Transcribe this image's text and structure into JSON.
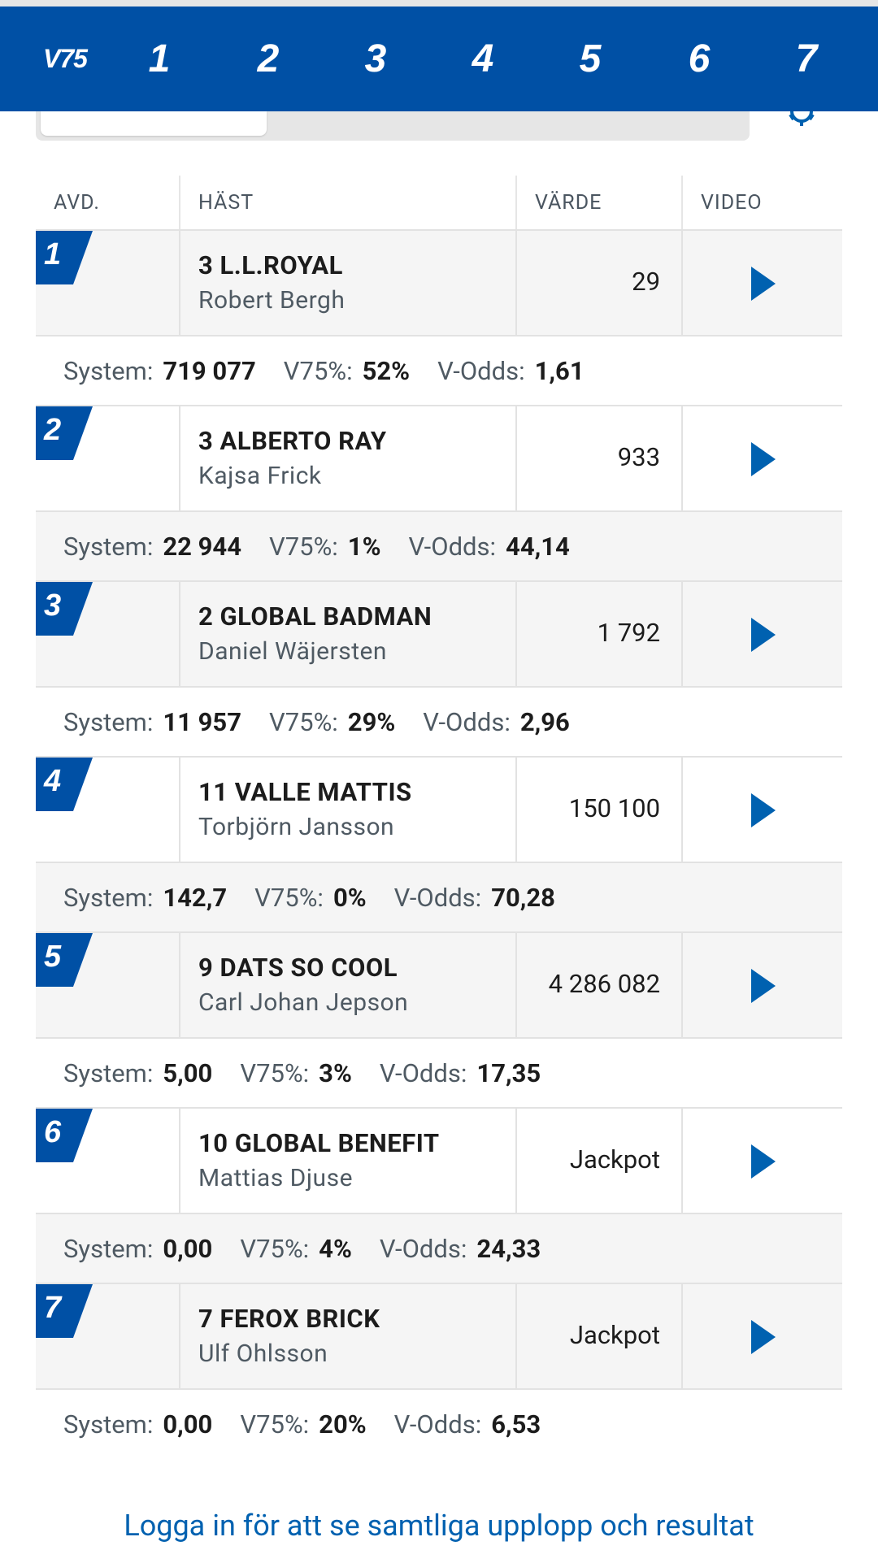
{
  "nav": {
    "brand": "V75",
    "races": [
      "1",
      "2",
      "3",
      "4",
      "5",
      "6",
      "7"
    ]
  },
  "table": {
    "headers": {
      "avd": "AVD.",
      "hast": "HÄST",
      "varde": "VÄRDE",
      "video": "VIDEO"
    }
  },
  "stat_labels": {
    "system": "System:",
    "pct": "V75%:",
    "odds": "V-Odds:"
  },
  "races": [
    {
      "avd": "1",
      "horse": "3 L.L.ROYAL",
      "driver": "Robert Bergh",
      "value": "29",
      "system": "719 077",
      "pct": "52%",
      "odds": "1,61"
    },
    {
      "avd": "2",
      "horse": "3 ALBERTO RAY",
      "driver": "Kajsa Frick",
      "value": "933",
      "system": "22 944",
      "pct": "1%",
      "odds": "44,14"
    },
    {
      "avd": "3",
      "horse": "2 GLOBAL BADMAN",
      "driver": "Daniel Wäjersten",
      "value": "1 792",
      "system": "11 957",
      "pct": "29%",
      "odds": "2,96"
    },
    {
      "avd": "4",
      "horse": "11 VALLE MATTIS",
      "driver": "Torbjörn Jansson",
      "value": "150 100",
      "system": "142,7",
      "pct": "0%",
      "odds": "70,28"
    },
    {
      "avd": "5",
      "horse": "9 DATS SO COOL",
      "driver": "Carl Johan Jepson",
      "value": "4 286 082",
      "system": "5,00",
      "pct": "3%",
      "odds": "17,35"
    },
    {
      "avd": "6",
      "horse": "10 GLOBAL BENEFIT",
      "driver": "Mattias Djuse",
      "value": "Jackpot",
      "system": "0,00",
      "pct": "4%",
      "odds": "24,33"
    },
    {
      "avd": "7",
      "horse": "7 FEROX BRICK",
      "driver": "Ulf Ohlsson",
      "value": "Jackpot",
      "system": "0,00",
      "pct": "20%",
      "odds": "6,53"
    }
  ],
  "footer": {
    "login_text": "Logga in för att se samtliga upplopp och resultat"
  },
  "colors": {
    "primary": "#0050a5",
    "link": "#0061b0",
    "row_grey": "#f5f5f5",
    "border": "#e2e2e2"
  }
}
